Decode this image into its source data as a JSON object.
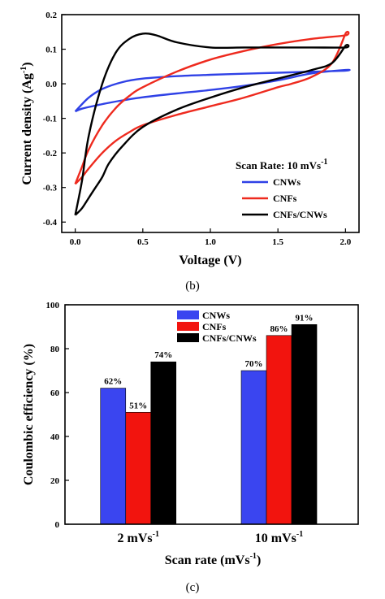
{
  "chart_data": [
    {
      "type": "line",
      "panel": "(b)",
      "xlabel": "Voltage (V)",
      "ylabel": "Current density (Ag",
      "ylabel_sup": "-1",
      "ylabel_close": ")",
      "xlim": [
        -0.1,
        2.1
      ],
      "ylim": [
        -0.43,
        0.2
      ],
      "x_ticks": [
        0.0,
        0.5,
        1.0,
        1.5,
        2.0
      ],
      "x_tick_labels": [
        "0.0",
        "0.5",
        "1.0",
        "1.5",
        "2.0"
      ],
      "y_ticks": [
        -0.4,
        -0.3,
        -0.2,
        -0.1,
        0.0,
        0.1,
        0.2
      ],
      "y_tick_labels": [
        "-0.4",
        "-0.3",
        "-0.2",
        "-0.1",
        "0.0",
        "0.1",
        "0.2"
      ],
      "legend_title": "Scan Rate: 10 mVs",
      "legend_title_sup": "-1",
      "legend_position": "bottom-right",
      "series": [
        {
          "name": "CNWs",
          "color": "#2f41e6",
          "x": [
            0.0,
            0.1,
            0.2,
            0.35,
            0.5,
            0.75,
            1.0,
            1.25,
            1.5,
            1.75,
            2.0,
            2.0,
            1.75,
            1.5,
            1.25,
            1.0,
            0.75,
            0.5,
            0.35,
            0.25,
            0.15,
            0.05,
            0.0
          ],
          "y": [
            -0.08,
            -0.04,
            -0.015,
            0.005,
            0.015,
            0.022,
            0.026,
            0.029,
            0.032,
            0.035,
            0.038,
            0.04,
            0.03,
            0.01,
            -0.006,
            -0.018,
            -0.028,
            -0.039,
            -0.048,
            -0.055,
            -0.063,
            -0.072,
            -0.08
          ]
        },
        {
          "name": "CNFs",
          "color": "#ee2a1e",
          "x": [
            0.0,
            0.05,
            0.1,
            0.2,
            0.3,
            0.4,
            0.5,
            0.75,
            1.0,
            1.25,
            1.5,
            1.75,
            2.0,
            2.0,
            1.9,
            1.75,
            1.6,
            1.5,
            1.25,
            1.0,
            0.75,
            0.5,
            0.4,
            0.3,
            0.2,
            0.1,
            0.05,
            0.0
          ],
          "y": [
            -0.29,
            -0.24,
            -0.19,
            -0.12,
            -0.07,
            -0.035,
            -0.01,
            0.035,
            0.07,
            0.095,
            0.115,
            0.13,
            0.14,
            0.145,
            0.06,
            0.02,
            0.0,
            -0.01,
            -0.04,
            -0.065,
            -0.09,
            -0.12,
            -0.14,
            -0.165,
            -0.2,
            -0.245,
            -0.27,
            -0.29
          ]
        },
        {
          "name": "CNFs/CNWs",
          "color": "#000000",
          "x": [
            0.0,
            0.05,
            0.1,
            0.2,
            0.3,
            0.4,
            0.5,
            0.6,
            0.75,
            1.0,
            1.25,
            1.5,
            1.75,
            2.0,
            2.0,
            1.9,
            1.75,
            1.5,
            1.25,
            1.0,
            0.75,
            0.5,
            0.35,
            0.25,
            0.2,
            0.15,
            0.1,
            0.05,
            0.0
          ],
          "y": [
            -0.38,
            -0.28,
            -0.15,
            0.0,
            0.09,
            0.13,
            0.145,
            0.14,
            0.12,
            0.105,
            0.105,
            0.105,
            0.105,
            0.105,
            0.11,
            0.06,
            0.04,
            0.015,
            -0.01,
            -0.04,
            -0.075,
            -0.125,
            -0.18,
            -0.23,
            -0.27,
            -0.3,
            -0.33,
            -0.36,
            -0.38
          ]
        }
      ]
    },
    {
      "type": "bar",
      "panel": "(c)",
      "xlabel": "Scan rate (mVs",
      "xlabel_sup": "-1",
      "xlabel_close": ")",
      "ylabel": "Coulombic efficiency (%)",
      "ylim": [
        0,
        100
      ],
      "y_ticks": [
        0,
        20,
        40,
        60,
        80,
        100
      ],
      "y_tick_labels": [
        "0",
        "20",
        "40",
        "60",
        "80",
        "100"
      ],
      "categories": [
        "2 mVs",
        "10 mVs"
      ],
      "category_sup": "-1",
      "legend_position": "top-center",
      "series": [
        {
          "name": "CNWs",
          "color": "#3a45f0",
          "values": [
            62,
            70
          ],
          "labels": [
            "62%",
            "70%"
          ]
        },
        {
          "name": "CNFs",
          "color": "#f2140e",
          "values": [
            51,
            86
          ],
          "labels": [
            "51%",
            "86%"
          ]
        },
        {
          "name": "CNFs/CNWs",
          "color": "#000000",
          "values": [
            74,
            91
          ],
          "labels": [
            "74%",
            "91%"
          ]
        }
      ]
    }
  ]
}
